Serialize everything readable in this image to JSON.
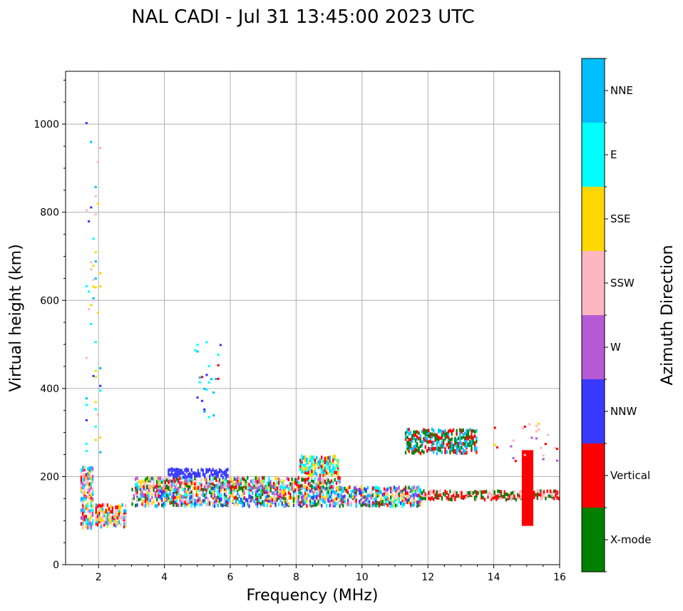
{
  "chart_data": {
    "type": "scatter",
    "title": "NAL CADI - Jul 31 13:45:00 2023 UTC",
    "xlabel": "Frequency (MHz)",
    "ylabel": "Virtual height (km)",
    "xlim": [
      1,
      16
    ],
    "ylim": [
      0,
      1120
    ],
    "xticks": [
      2,
      4,
      6,
      8,
      10,
      12,
      14,
      16
    ],
    "yticks": [
      0,
      200,
      400,
      600,
      800,
      1000
    ],
    "grid": true,
    "colorbar": {
      "label": "Azimuth Direction",
      "categories": [
        {
          "name": "X-mode",
          "color": "#008000"
        },
        {
          "name": "Vertical",
          "color": "#ff0000"
        },
        {
          "name": "NNW",
          "color": "#3a3aff"
        },
        {
          "name": "W",
          "color": "#b65ad6"
        },
        {
          "name": "SSW",
          "color": "#ffb6c1"
        },
        {
          "name": "SSE",
          "color": "#ffd700"
        },
        {
          "name": "E",
          "color": "#00ffff"
        },
        {
          "name": "NNE",
          "color": "#00bfff"
        }
      ]
    },
    "features": [
      {
        "name": "low-frequency-column",
        "f": [
          1.45,
          1.85
        ],
        "h": [
          85,
          220
        ],
        "mix": [
          "SSE",
          "NNE",
          "E",
          "Vertical",
          "SSW",
          "W"
        ]
      },
      {
        "name": "oblique-trace-scatter-1",
        "f": [
          1.6,
          2.05
        ],
        "h": [
          260,
          1000
        ],
        "mix": [
          "NNE",
          "E",
          "SSE",
          "SSW",
          "NNW"
        ]
      },
      {
        "name": "E-region-patch",
        "f": [
          1.9,
          2.8
        ],
        "h": [
          88,
          135
        ],
        "mix": [
          "SSE",
          "NNE",
          "Vertical",
          "SSW"
        ]
      },
      {
        "name": "F-layer-main",
        "f": [
          3.0,
          11.8
        ],
        "h": [
          135,
          175
        ],
        "mix": [
          "Vertical",
          "W",
          "SSE",
          "X-mode",
          "E",
          "NNE",
          "SSW",
          "NNW"
        ]
      },
      {
        "name": "F-layer-upper",
        "f": [
          3.1,
          9.3
        ],
        "h": [
          175,
          195
        ],
        "mix": [
          "Vertical",
          "W",
          "E",
          "SSE",
          "SSW",
          "X-mode"
        ]
      },
      {
        "name": "NNW-arc",
        "f": [
          4.1,
          5.9
        ],
        "h": [
          200,
          218
        ],
        "mix": [
          "NNW"
        ]
      },
      {
        "name": "oblique-trace-scatter-2",
        "f": [
          4.9,
          5.7
        ],
        "h": [
          340,
          510
        ],
        "mix": [
          "NNE",
          "E",
          "NNW",
          "Vertical"
        ]
      },
      {
        "name": "SSE-blob",
        "f": [
          8.1,
          9.3
        ],
        "h": [
          205,
          248
        ],
        "mix": [
          "SSE",
          "E",
          "Vertical",
          "NNE"
        ]
      },
      {
        "name": "oblique-trace-12MHz",
        "f": [
          11.3,
          13.5
        ],
        "h": [
          255,
          305
        ],
        "mix": [
          "Vertical",
          "X-mode",
          "NNE"
        ]
      },
      {
        "name": "F-layer-high-freq",
        "f": [
          11.8,
          16.0
        ],
        "h": [
          150,
          168
        ],
        "mix": [
          "Vertical",
          "X-mode",
          "SSW"
        ]
      },
      {
        "name": "vertical-bar-15MHz",
        "f": [
          14.85,
          15.2
        ],
        "h": [
          88,
          260
        ],
        "mix": [
          "Vertical"
        ]
      },
      {
        "name": "upper-marks-14-16",
        "f": [
          14.0,
          16.0
        ],
        "h": [
          240,
          315
        ],
        "mix": [
          "SSW",
          "Vertical",
          "W",
          "SSE"
        ]
      }
    ]
  }
}
